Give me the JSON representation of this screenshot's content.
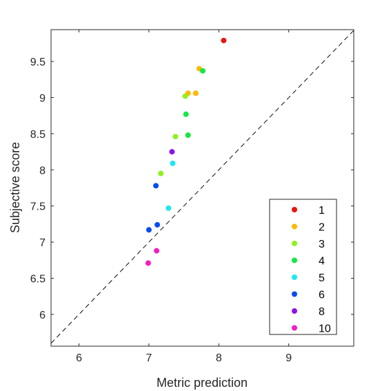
{
  "chart_data": {
    "type": "scatter",
    "title": "",
    "xlabel": "Metric prediction",
    "ylabel": "Subjective score",
    "xlim": [
      5.6,
      9.93
    ],
    "ylim": [
      5.56,
      9.94
    ],
    "xticks": [
      6,
      7,
      8,
      9
    ],
    "yticks": [
      6,
      6.5,
      7,
      7.5,
      8,
      8.5,
      9,
      9.5
    ],
    "ytick_labels": [
      "6",
      "6.5",
      "7",
      "7.5",
      "8",
      "8.5",
      "9",
      "9.5"
    ],
    "reference_line": "y = x (dashed)",
    "grid": false,
    "legend_position": "lower-right",
    "series": [
      {
        "name": "1",
        "color": "#e8150c",
        "points": [
          {
            "x": 8.07,
            "y": 9.79
          }
        ]
      },
      {
        "name": "2",
        "color": "#ffb800",
        "points": [
          {
            "x": 7.72,
            "y": 9.4
          },
          {
            "x": 7.56,
            "y": 9.06
          },
          {
            "x": 7.67,
            "y": 9.06
          }
        ]
      },
      {
        "name": "3",
        "color": "#8ef21f",
        "points": [
          {
            "x": 7.52,
            "y": 9.02
          },
          {
            "x": 7.38,
            "y": 8.46
          },
          {
            "x": 7.17,
            "y": 7.95
          }
        ]
      },
      {
        "name": "4",
        "color": "#16e648",
        "points": [
          {
            "x": 7.77,
            "y": 9.37
          },
          {
            "x": 7.53,
            "y": 8.77
          },
          {
            "x": 7.56,
            "y": 8.48
          }
        ]
      },
      {
        "name": "5",
        "color": "#1ee7f3",
        "points": [
          {
            "x": 7.34,
            "y": 8.09
          },
          {
            "x": 7.28,
            "y": 7.47
          }
        ]
      },
      {
        "name": "6",
        "color": "#0a4cf0",
        "points": [
          {
            "x": 7.1,
            "y": 7.78
          },
          {
            "x": 7.12,
            "y": 7.24
          },
          {
            "x": 7.0,
            "y": 7.17
          }
        ]
      },
      {
        "name": "8",
        "color": "#8b14ea",
        "points": [
          {
            "x": 7.33,
            "y": 8.25
          }
        ]
      },
      {
        "name": "10",
        "color": "#f21ec0",
        "points": [
          {
            "x": 7.11,
            "y": 6.88
          },
          {
            "x": 6.99,
            "y": 6.71
          }
        ]
      }
    ]
  }
}
